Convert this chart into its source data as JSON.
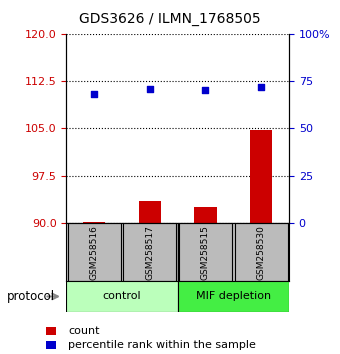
{
  "title": "GDS3626 / ILMN_1768505",
  "samples": [
    "GSM258516",
    "GSM258517",
    "GSM258515",
    "GSM258530"
  ],
  "bar_values": [
    90.2,
    93.5,
    92.5,
    104.8
  ],
  "scatter_values": [
    68,
    71,
    70,
    72
  ],
  "bar_color": "#cc0000",
  "scatter_color": "#0000cc",
  "left_ylim": [
    90,
    120
  ],
  "left_yticks": [
    90,
    97.5,
    105,
    112.5,
    120
  ],
  "right_ylim": [
    0,
    100
  ],
  "right_yticks": [
    0,
    25,
    50,
    75,
    100
  ],
  "right_yticklabels": [
    "0",
    "25",
    "50",
    "75",
    "100%"
  ],
  "left_ycolor": "#cc0000",
  "right_ycolor": "#0000cc",
  "control_color": "#bbffbb",
  "mif_color": "#44ee44",
  "protocol_label": "protocol",
  "legend_count_label": "count",
  "legend_pct_label": "percentile rank within the sample",
  "sample_label_bg": "#bbbbbb",
  "plot_bg_color": "#ffffff"
}
